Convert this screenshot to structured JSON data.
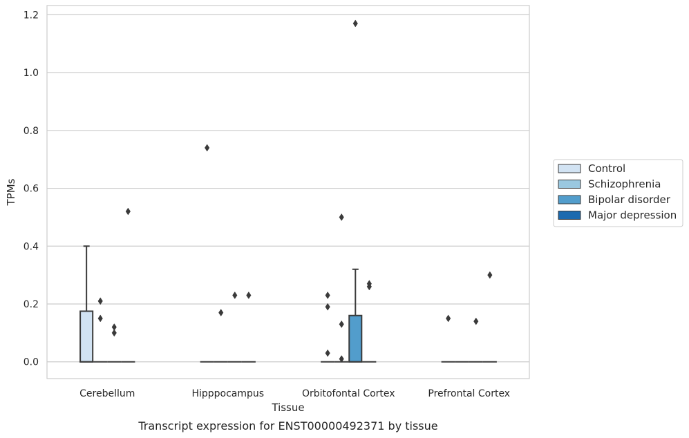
{
  "caption": "Transcript expression for ENST00000492371 by tissue",
  "chart_data": {
    "type": "box",
    "xlabel": "Tissue",
    "ylabel": "TPMs",
    "ylim": [
      -0.058,
      1.232
    ],
    "yticks": [
      0.0,
      0.2,
      0.4,
      0.6,
      0.8,
      1.0,
      1.2
    ],
    "ytick_labels": [
      "0.0",
      "0.2",
      "0.4",
      "0.6",
      "0.8",
      "1.0",
      "1.2"
    ],
    "grid": true,
    "legend_placement": "center-right outside",
    "categories": [
      "Cerebellum",
      "Hipppocampus",
      "Orbitofontal Cortex",
      "Prefrontal Cortex"
    ],
    "series": [
      {
        "name": "Control",
        "color": "#d2e3f3",
        "boxes": [
          {
            "q1": 0.0,
            "median": 0.0,
            "q3": 0.175,
            "whisker_low": 0.0,
            "whisker_high": 0.4,
            "outliers": []
          },
          {
            "q1": 0.0,
            "median": 0.0,
            "q3": 0.0,
            "whisker_low": 0.0,
            "whisker_high": 0.0,
            "outliers": [
              0.74
            ]
          },
          {
            "q1": 0.0,
            "median": 0.0,
            "q3": 0.0,
            "whisker_low": 0.0,
            "whisker_high": 0.0,
            "outliers": [
              0.03,
              0.19,
              0.23
            ]
          },
          {
            "q1": 0.0,
            "median": 0.0,
            "q3": 0.0,
            "whisker_low": 0.0,
            "whisker_high": 0.0,
            "outliers": [
              0.15
            ]
          }
        ]
      },
      {
        "name": "Schizophrenia",
        "color": "#9ac8e0",
        "boxes": [
          {
            "q1": 0.0,
            "median": 0.0,
            "q3": 0.0,
            "whisker_low": 0.0,
            "whisker_high": 0.0,
            "outliers": [
              0.15,
              0.21
            ]
          },
          {
            "q1": 0.0,
            "median": 0.0,
            "q3": 0.0,
            "whisker_low": 0.0,
            "whisker_high": 0.0,
            "outliers": [
              0.17
            ]
          },
          {
            "q1": 0.0,
            "median": 0.0,
            "q3": 0.0,
            "whisker_low": 0.0,
            "whisker_high": 0.0,
            "outliers": [
              0.01,
              0.13,
              0.5
            ]
          },
          {
            "q1": 0.0,
            "median": 0.0,
            "q3": 0.0,
            "whisker_low": 0.0,
            "whisker_high": 0.0,
            "outliers": []
          }
        ]
      },
      {
        "name": "Bipolar disorder",
        "color": "#529dcc",
        "boxes": [
          {
            "q1": 0.0,
            "median": 0.0,
            "q3": 0.0,
            "whisker_low": 0.0,
            "whisker_high": 0.0,
            "outliers": [
              0.1,
              0.12
            ]
          },
          {
            "q1": 0.0,
            "median": 0.0,
            "q3": 0.0,
            "whisker_low": 0.0,
            "whisker_high": 0.0,
            "outliers": [
              0.23
            ]
          },
          {
            "q1": 0.0,
            "median": 0.0,
            "q3": 0.16,
            "whisker_low": 0.0,
            "whisker_high": 0.32,
            "outliers": [
              1.17
            ]
          },
          {
            "q1": 0.0,
            "median": 0.0,
            "q3": 0.0,
            "whisker_low": 0.0,
            "whisker_high": 0.0,
            "outliers": [
              0.14
            ]
          }
        ]
      },
      {
        "name": "Major depression",
        "color": "#1c6aaf",
        "boxes": [
          {
            "q1": 0.0,
            "median": 0.0,
            "q3": 0.0,
            "whisker_low": 0.0,
            "whisker_high": 0.0,
            "outliers": [
              0.52
            ]
          },
          {
            "q1": 0.0,
            "median": 0.0,
            "q3": 0.0,
            "whisker_low": 0.0,
            "whisker_high": 0.0,
            "outliers": [
              0.23
            ]
          },
          {
            "q1": 0.0,
            "median": 0.0,
            "q3": 0.0,
            "whisker_low": 0.0,
            "whisker_high": 0.0,
            "outliers": [
              0.26,
              0.27
            ]
          },
          {
            "q1": 0.0,
            "median": 0.0,
            "q3": 0.0,
            "whisker_low": 0.0,
            "whisker_high": 0.0,
            "outliers": [
              0.3
            ]
          }
        ]
      }
    ]
  }
}
